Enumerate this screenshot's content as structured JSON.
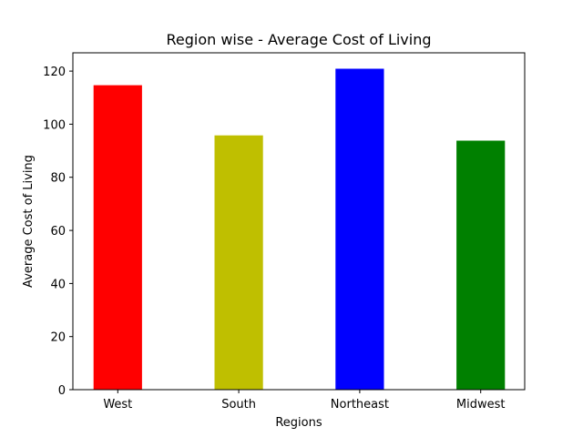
{
  "chart_data": {
    "type": "bar",
    "title": "Region wise - Average Cost of Living",
    "xlabel": "Regions",
    "ylabel": "Average Cost of Living",
    "categories": [
      "West",
      "South",
      "Northeast",
      "Midwest"
    ],
    "values": [
      114.7,
      95.8,
      120.9,
      93.8
    ],
    "colors": [
      "#ff0000",
      "#bfbf00",
      "#0000ff",
      "#008000"
    ],
    "ylim": [
      0,
      126.9
    ],
    "yticks": [
      0,
      20,
      40,
      60,
      80,
      100,
      120
    ],
    "grid": false,
    "legend": "none"
  }
}
